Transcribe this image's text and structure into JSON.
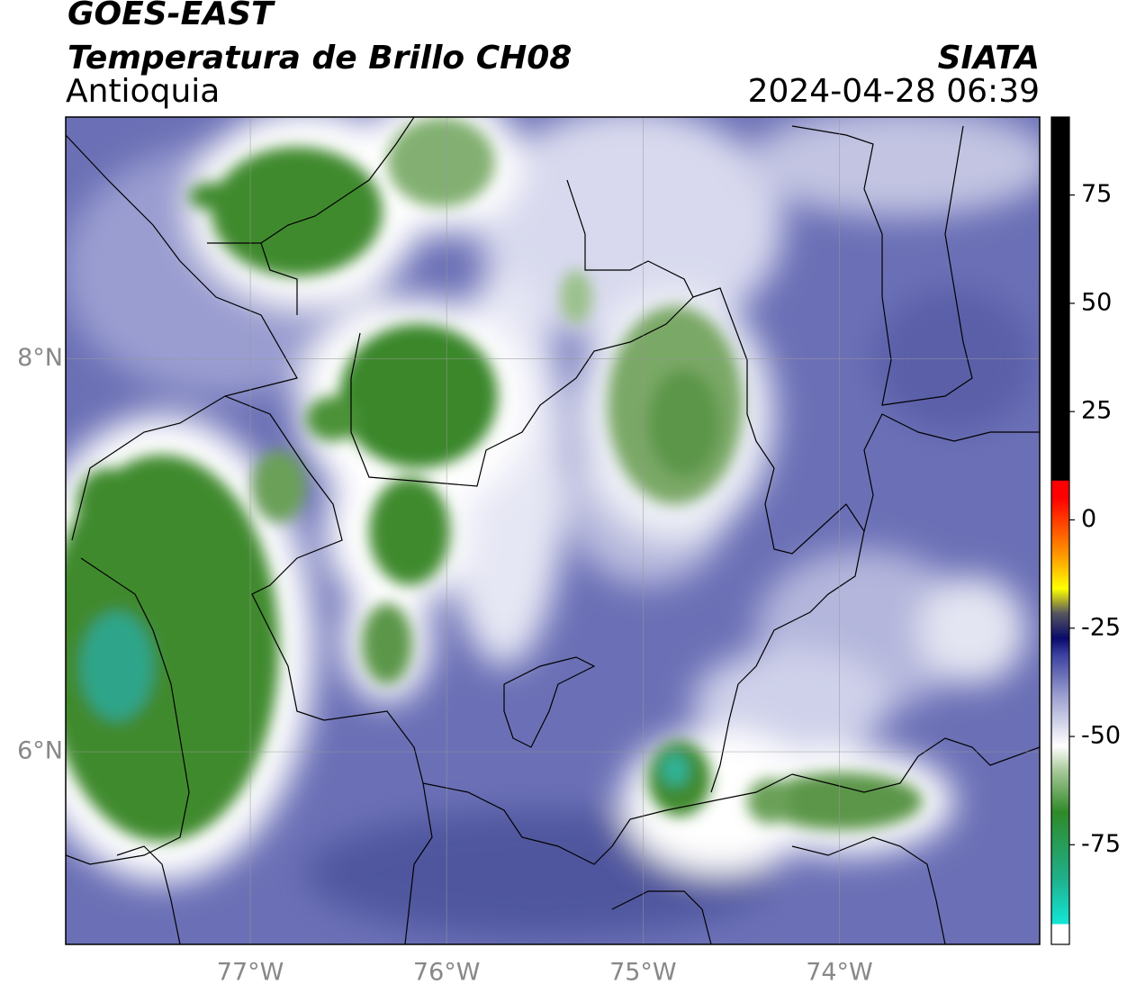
{
  "chart_data": {
    "type": "map",
    "title": "GOES-EAST",
    "subtitle": "Temperatura de Brillo CH08",
    "region": "Antioquia",
    "source": "SIATA",
    "timestamp": "2024-04-28 06:39",
    "xlim": [
      -77.94,
      -72.98
    ],
    "ylim": [
      5.02,
      9.23
    ],
    "xticks": [
      {
        "value": -77,
        "label": "77°W"
      },
      {
        "value": -76,
        "label": "76°W"
      },
      {
        "value": -75,
        "label": "75°W"
      },
      {
        "value": -74,
        "label": "74°W"
      }
    ],
    "yticks": [
      {
        "value": 6,
        "label": "6°N"
      },
      {
        "value": 8,
        "label": "8°N"
      }
    ],
    "grid": true,
    "colorbar": {
      "lim": [
        -98,
        93
      ],
      "ticks": [
        -75,
        -50,
        -25,
        0,
        25,
        50,
        75
      ]
    }
  }
}
